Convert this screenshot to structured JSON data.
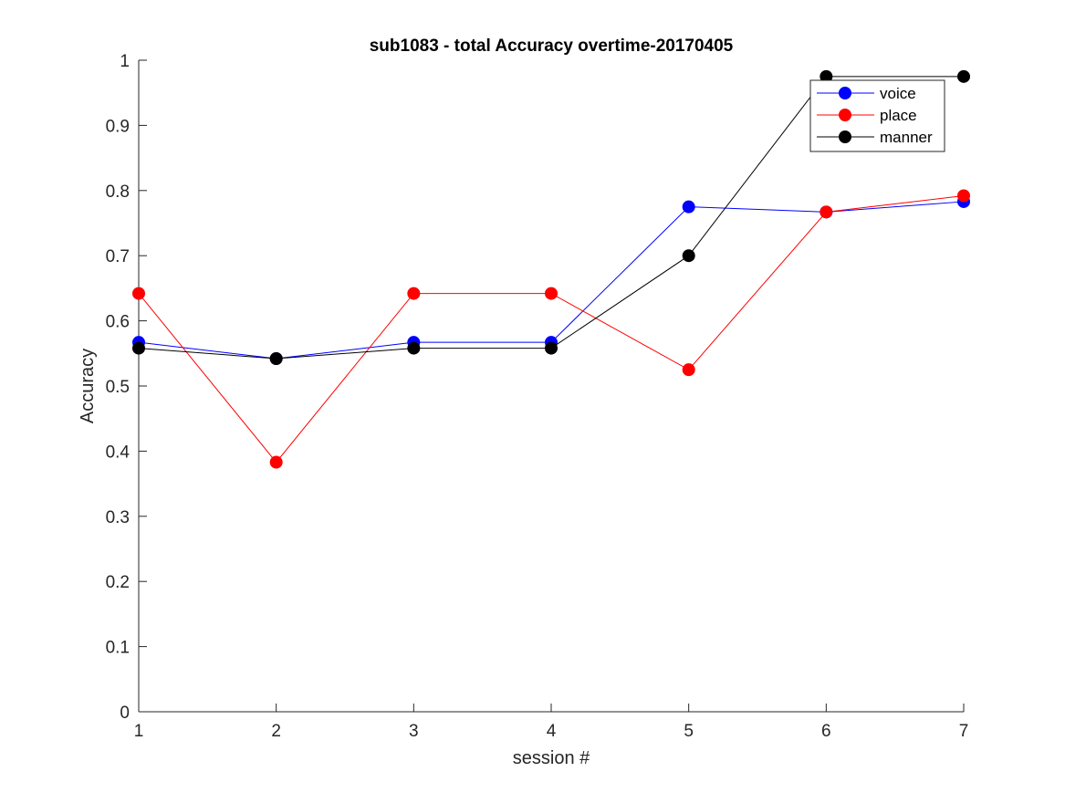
{
  "chart_data": {
    "type": "line",
    "title": "sub1083 - total Accuracy overtime-20170405",
    "xlabel": "session #",
    "ylabel": "Accuracy",
    "x": [
      1,
      2,
      3,
      4,
      5,
      6,
      7
    ],
    "xlim": [
      1,
      7
    ],
    "ylim": [
      0,
      1
    ],
    "xticks": [
      "1",
      "2",
      "3",
      "4",
      "5",
      "6",
      "7"
    ],
    "yticks": [
      "0",
      "0.1",
      "0.2",
      "0.3",
      "0.4",
      "0.5",
      "0.6",
      "0.7",
      "0.8",
      "0.9",
      "1"
    ],
    "grid": false,
    "legend_position": "top-right",
    "series": [
      {
        "name": "voice",
        "color": "#0000ff",
        "marker": "circle",
        "values": [
          0.567,
          0.542,
          0.567,
          0.567,
          0.775,
          0.767,
          0.783
        ]
      },
      {
        "name": "place",
        "color": "#ff0000",
        "marker": "circle",
        "values": [
          0.642,
          0.383,
          0.642,
          0.642,
          0.525,
          0.767,
          0.792
        ]
      },
      {
        "name": "manner",
        "color": "#000000",
        "marker": "circle",
        "values": [
          0.558,
          0.542,
          0.558,
          0.558,
          0.7,
          0.975,
          0.975
        ]
      }
    ]
  }
}
